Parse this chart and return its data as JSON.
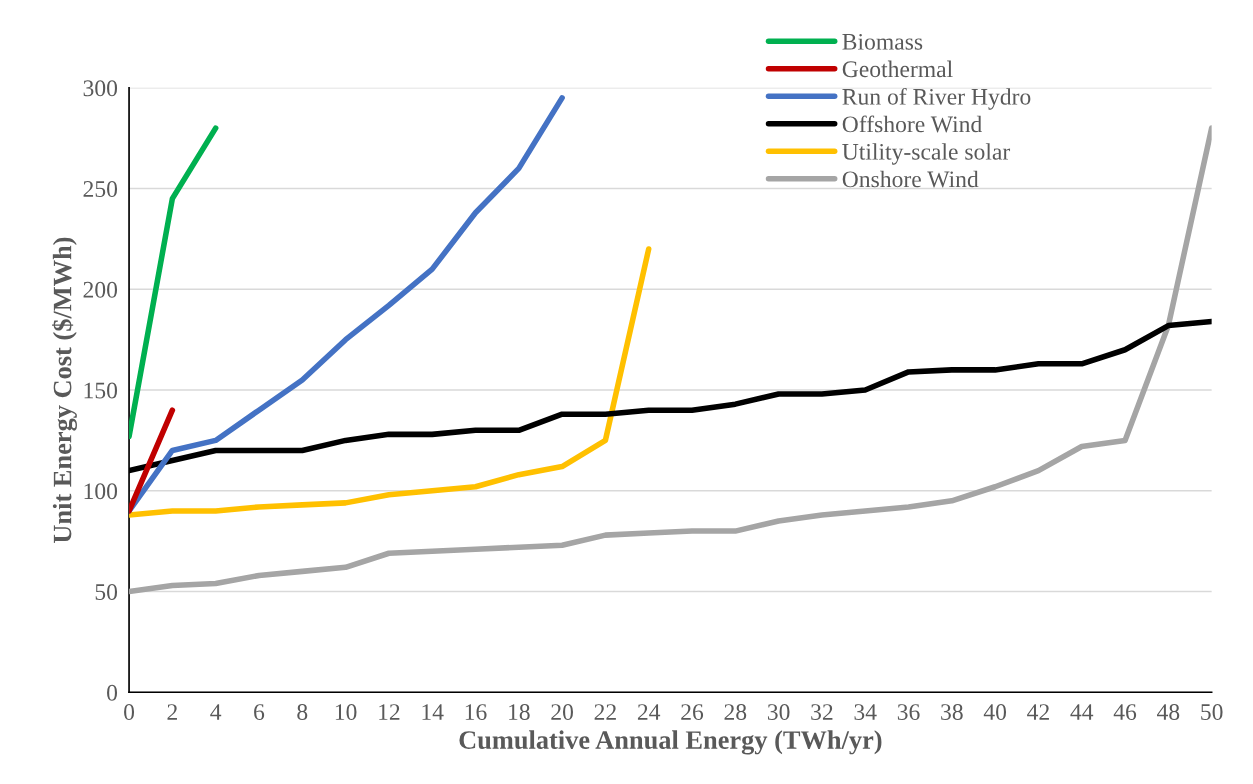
{
  "chart_data": {
    "type": "line",
    "xlabel": "Cumulative Annual Energy (TWh/yr)",
    "ylabel": "Unit Energy Cost ($/MWh)",
    "xlim": [
      0,
      50
    ],
    "xticks": [
      0,
      2,
      4,
      6,
      8,
      10,
      12,
      14,
      16,
      18,
      20,
      22,
      24,
      26,
      28,
      30,
      32,
      34,
      36,
      38,
      40,
      42,
      44,
      46,
      48,
      50
    ],
    "ylim": [
      0,
      300
    ],
    "yticks": [
      0,
      50,
      100,
      150,
      200,
      250,
      300
    ],
    "grid": "y",
    "legend": "top right",
    "marker": "none",
    "line_style": "solid",
    "series": [
      {
        "name": "Biomass",
        "color": "#00b050",
        "x": [
          0,
          2,
          4
        ],
        "values": [
          127,
          245,
          280
        ]
      },
      {
        "name": "Geothermal",
        "color": "#c00000",
        "x": [
          0,
          2
        ],
        "values": [
          90,
          140
        ]
      },
      {
        "name": "Run of River Hydro",
        "color": "#4472c4",
        "x": [
          0,
          2,
          4,
          6,
          8,
          10,
          12,
          14,
          16,
          18,
          20
        ],
        "values": [
          90,
          120,
          125,
          140,
          155,
          175,
          192,
          210,
          238,
          260,
          295
        ]
      },
      {
        "name": "Offshore Wind",
        "color": "#000000",
        "x": [
          0,
          2,
          4,
          6,
          8,
          10,
          12,
          14,
          16,
          18,
          20,
          22,
          24,
          26,
          28,
          30,
          32,
          34,
          36,
          38,
          40,
          42,
          44,
          46,
          48,
          50
        ],
        "values": [
          110,
          115,
          120,
          120,
          120,
          125,
          128,
          128,
          130,
          130,
          138,
          138,
          140,
          140,
          143,
          148,
          148,
          150,
          159,
          160,
          160,
          163,
          163,
          170,
          182,
          184
        ]
      },
      {
        "name": "Utility-scale solar",
        "color": "#ffc000",
        "x": [
          0,
          2,
          4,
          6,
          8,
          10,
          12,
          14,
          16,
          18,
          20,
          22,
          24
        ],
        "values": [
          88,
          90,
          90,
          92,
          93,
          94,
          98,
          100,
          102,
          108,
          112,
          125,
          220
        ]
      },
      {
        "name": "Onshore Wind",
        "color": "#a5a5a5",
        "x": [
          0,
          2,
          4,
          6,
          8,
          10,
          12,
          14,
          16,
          18,
          20,
          22,
          24,
          26,
          28,
          30,
          32,
          34,
          36,
          38,
          40,
          42,
          44,
          46,
          48,
          50
        ],
        "values": [
          50,
          53,
          54,
          58,
          60,
          62,
          69,
          70,
          71,
          72,
          73,
          78,
          79,
          80,
          80,
          85,
          88,
          90,
          92,
          95,
          102,
          110,
          122,
          125,
          182,
          280
        ]
      }
    ]
  }
}
